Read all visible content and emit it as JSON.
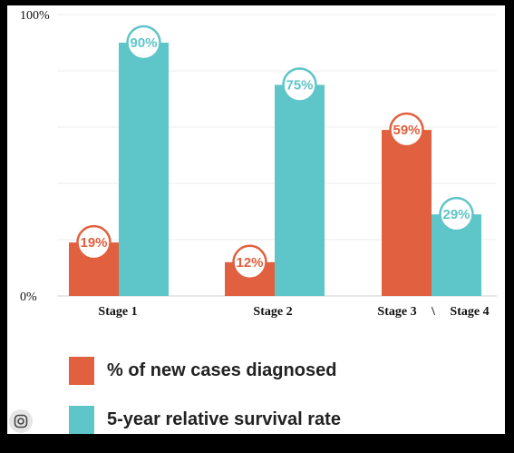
{
  "chart_data": {
    "type": "bar",
    "categories": [
      "Stage 1",
      "Stage 2",
      "Stage 3",
      "Stage 4"
    ],
    "category_divider": "\\",
    "series": [
      {
        "name": "% of new cases diagnosed",
        "color": "#e0603f",
        "values": [
          19,
          12,
          59,
          null
        ],
        "labels": [
          "19%",
          "12%",
          "59%",
          ""
        ]
      },
      {
        "name": "5-year relative survival rate",
        "color": "#5ec5c9",
        "values": [
          90,
          75,
          null,
          29
        ],
        "labels": [
          "90%",
          "75%",
          "",
          "29%"
        ]
      }
    ],
    "ylim": [
      0,
      100
    ],
    "yticks": [
      {
        "value": 100,
        "label": "100%"
      },
      {
        "value": 0,
        "label": "0%"
      }
    ],
    "grid": true,
    "legend_position": "bottom"
  },
  "overlay": {
    "lens_icon": "lens-icon"
  }
}
